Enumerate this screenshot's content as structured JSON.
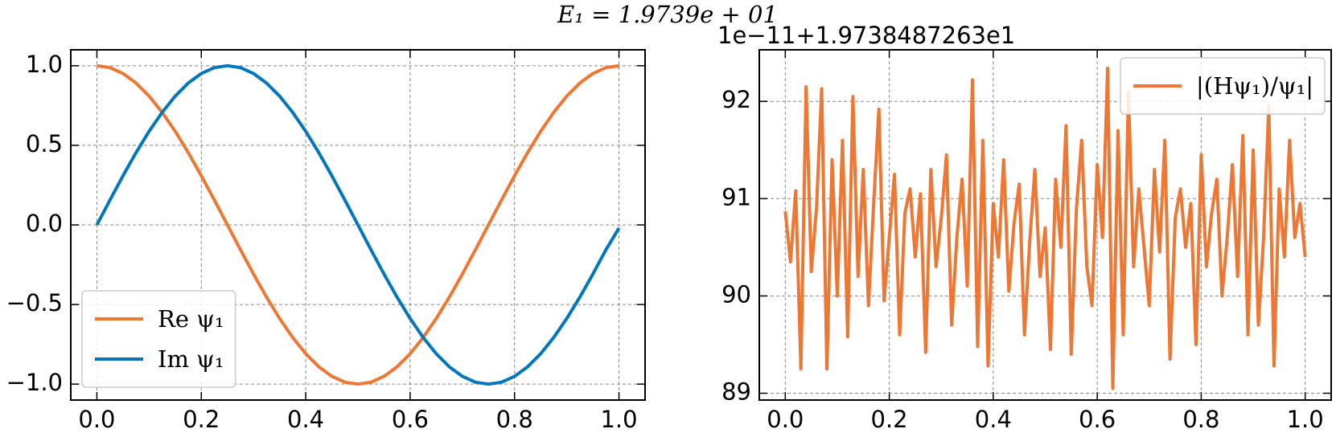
{
  "suptitle": "E₁ = 1.9739e + 01",
  "chart_data": [
    {
      "type": "line",
      "grid": true,
      "legend": "lower left",
      "xlim": [
        -0.05,
        1.05
      ],
      "ylim": [
        -1.1,
        1.1
      ],
      "xticks": [
        {
          "value": 0,
          "label": "0.0"
        },
        0.2,
        0.4,
        0.6,
        0.8,
        {
          "value": 1,
          "label": "1.0"
        }
      ],
      "yticks": [
        {
          "value": -1,
          "label": "−1.0"
        },
        {
          "value": -0.5,
          "label": "−0.5"
        },
        {
          "value": 0,
          "label": "0.0"
        },
        0.5,
        {
          "value": 1,
          "label": "1.0"
        }
      ],
      "x": [
        0,
        0.025,
        0.05,
        0.075,
        0.1,
        0.125,
        0.15,
        0.175,
        0.2,
        0.225,
        0.25,
        0.275,
        0.3,
        0.325,
        0.35,
        0.375,
        0.4,
        0.425,
        0.45,
        0.475,
        0.5,
        0.525,
        0.55,
        0.575,
        0.6,
        0.625,
        0.65,
        0.675,
        0.7,
        0.725,
        0.75,
        0.775,
        0.8,
        0.825,
        0.85,
        0.875,
        0.9,
        0.925,
        0.95,
        0.975,
        1
      ],
      "series": [
        {
          "name": "Re ψ₁",
          "color": "#EE7733",
          "values": [
            1,
            0.988,
            0.951,
            0.891,
            0.809,
            0.707,
            0.588,
            0.454,
            0.309,
            0.156,
            0,
            -0.156,
            -0.309,
            -0.454,
            -0.588,
            -0.707,
            -0.809,
            -0.891,
            -0.951,
            -0.988,
            -1,
            -0.988,
            -0.951,
            -0.891,
            -0.809,
            -0.707,
            -0.588,
            -0.454,
            -0.309,
            -0.156,
            0,
            0.156,
            0.309,
            0.454,
            0.588,
            0.707,
            0.809,
            0.891,
            0.951,
            0.988,
            1
          ]
        },
        {
          "name": "Im ψ₁",
          "color": "#0077BB",
          "values": [
            0,
            0.156,
            0.309,
            0.454,
            0.588,
            0.707,
            0.809,
            0.891,
            0.951,
            0.988,
            1,
            0.988,
            0.951,
            0.891,
            0.809,
            0.707,
            0.588,
            0.454,
            0.309,
            0.156,
            0,
            -0.156,
            -0.309,
            -0.454,
            -0.588,
            -0.707,
            -0.809,
            -0.891,
            -0.951,
            -0.988,
            -1,
            -0.988,
            -0.951,
            -0.891,
            -0.809,
            -0.707,
            -0.588,
            -0.454,
            -0.309,
            -0.156,
            -0.02
          ]
        }
      ]
    },
    {
      "type": "line",
      "grid": true,
      "legend": "upper right",
      "offset_label": "1e−11+1.9738487263e1",
      "xlim": [
        -0.05,
        1.05
      ],
      "ylim": [
        88.93,
        92.53
      ],
      "xticks": [
        {
          "value": 0,
          "label": "0.0"
        },
        0.2,
        0.4,
        0.6,
        0.8,
        {
          "value": 1,
          "label": "1.0"
        }
      ],
      "yticks": [
        89,
        90,
        91,
        92
      ],
      "x": [
        0,
        0.01,
        0.02,
        0.03,
        0.04,
        0.05,
        0.06,
        0.07,
        0.08,
        0.09,
        0.1,
        0.11,
        0.12,
        0.13,
        0.14,
        0.15,
        0.16,
        0.17,
        0.18,
        0.19,
        0.2,
        0.21,
        0.22,
        0.23,
        0.24,
        0.25,
        0.26,
        0.27,
        0.28,
        0.29,
        0.3,
        0.31,
        0.32,
        0.33,
        0.34,
        0.35,
        0.36,
        0.37,
        0.38,
        0.39,
        0.4,
        0.41,
        0.42,
        0.43,
        0.44,
        0.45,
        0.46,
        0.47,
        0.48,
        0.49,
        0.5,
        0.51,
        0.52,
        0.53,
        0.54,
        0.55,
        0.56,
        0.57,
        0.58,
        0.59,
        0.6,
        0.61,
        0.62,
        0.63,
        0.64,
        0.65,
        0.66,
        0.67,
        0.68,
        0.69,
        0.7,
        0.71,
        0.72,
        0.73,
        0.74,
        0.75,
        0.76,
        0.77,
        0.78,
        0.79,
        0.8,
        0.81,
        0.82,
        0.83,
        0.84,
        0.85,
        0.86,
        0.87,
        0.88,
        0.89,
        0.9,
        0.91,
        0.92,
        0.93,
        0.94,
        0.95,
        0.96,
        0.97,
        0.98,
        0.99,
        1
      ],
      "series": [
        {
          "name": "|(Hψ₁)/ψ₁|",
          "color": "#EE7733",
          "values": [
            90.87,
            90.35,
            91.08,
            89.25,
            92.15,
            90.25,
            90.9,
            92.13,
            89.25,
            91.4,
            90.0,
            91.6,
            89.58,
            92.05,
            90.2,
            91.3,
            89.9,
            90.95,
            91.92,
            89.95,
            90.6,
            91.25,
            89.6,
            90.85,
            91.1,
            90.4,
            91.05,
            89.42,
            91.3,
            90.3,
            90.8,
            91.45,
            89.7,
            90.6,
            91.2,
            90.1,
            92.22,
            89.48,
            91.6,
            89.28,
            90.95,
            90.4,
            91.4,
            90.05,
            90.75,
            91.15,
            89.6,
            90.55,
            91.3,
            90.2,
            90.7,
            89.45,
            91.2,
            90.5,
            91.75,
            89.4,
            90.9,
            91.6,
            90.3,
            89.9,
            91.35,
            90.6,
            92.34,
            89.05,
            91.7,
            89.6,
            92.1,
            90.3,
            91.1,
            90.5,
            89.9,
            91.3,
            90.45,
            91.6,
            89.35,
            90.8,
            91.1,
            90.5,
            90.95,
            89.5,
            91.45,
            90.3,
            90.85,
            91.2,
            90.0,
            90.6,
            91.35,
            90.2,
            91.65,
            89.6,
            91.5,
            89.7,
            90.6,
            91.95,
            89.28,
            91.1,
            90.4,
            91.6,
            90.6,
            90.95,
            90.4
          ]
        }
      ]
    }
  ]
}
